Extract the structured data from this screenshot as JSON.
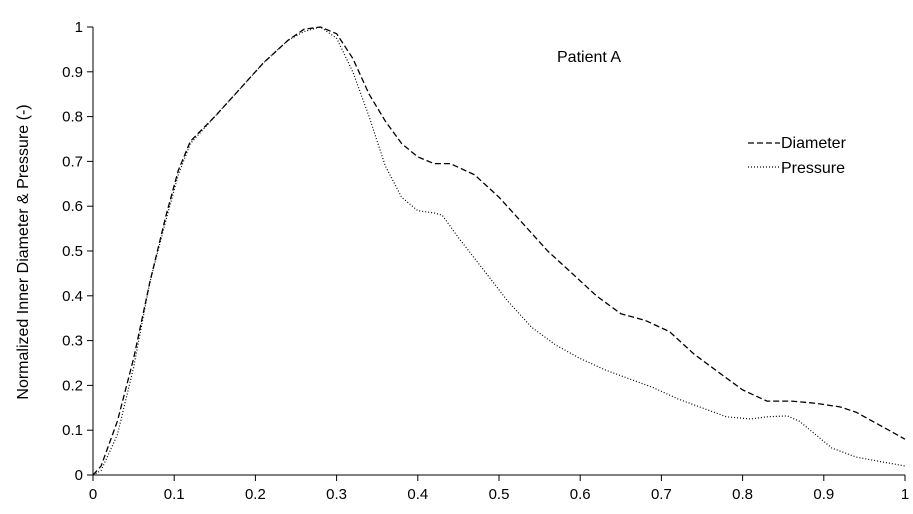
{
  "chart_data": {
    "type": "line",
    "annotation": "Patient A",
    "xlabel": "",
    "ylabel": "Normalized Inner Diameter & Pressure (-)",
    "xlim": [
      0,
      1
    ],
    "ylim": [
      0,
      1
    ],
    "xticks": [
      "0",
      "0.1",
      "0.2",
      "0.3",
      "0.4",
      "0.5",
      "0.6",
      "0.7",
      "0.8",
      "0.9",
      "1"
    ],
    "yticks": [
      "0",
      "0.1",
      "0.2",
      "0.3",
      "0.4",
      "0.5",
      "0.6",
      "0.7",
      "0.8",
      "0.9",
      "1"
    ],
    "grid": false,
    "legend_position": "right",
    "series": [
      {
        "name": "Diameter",
        "style": "dashed",
        "color": "#000000",
        "points": [
          [
            0,
            0
          ],
          [
            0.01,
            0.02
          ],
          [
            0.03,
            0.12
          ],
          [
            0.05,
            0.26
          ],
          [
            0.07,
            0.43
          ],
          [
            0.09,
            0.58
          ],
          [
            0.105,
            0.68
          ],
          [
            0.12,
            0.745
          ],
          [
            0.15,
            0.8
          ],
          [
            0.18,
            0.86
          ],
          [
            0.21,
            0.92
          ],
          [
            0.24,
            0.97
          ],
          [
            0.26,
            0.995
          ],
          [
            0.28,
            1.0
          ],
          [
            0.3,
            0.985
          ],
          [
            0.32,
            0.93
          ],
          [
            0.34,
            0.85
          ],
          [
            0.36,
            0.79
          ],
          [
            0.38,
            0.74
          ],
          [
            0.4,
            0.71
          ],
          [
            0.42,
            0.695
          ],
          [
            0.44,
            0.695
          ],
          [
            0.47,
            0.67
          ],
          [
            0.5,
            0.62
          ],
          [
            0.53,
            0.56
          ],
          [
            0.56,
            0.5
          ],
          [
            0.59,
            0.45
          ],
          [
            0.62,
            0.4
          ],
          [
            0.65,
            0.36
          ],
          [
            0.68,
            0.345
          ],
          [
            0.71,
            0.32
          ],
          [
            0.74,
            0.27
          ],
          [
            0.77,
            0.23
          ],
          [
            0.8,
            0.19
          ],
          [
            0.83,
            0.165
          ],
          [
            0.86,
            0.165
          ],
          [
            0.89,
            0.16
          ],
          [
            0.92,
            0.152
          ],
          [
            0.94,
            0.14
          ],
          [
            0.97,
            0.11
          ],
          [
            1.0,
            0.08
          ]
        ]
      },
      {
        "name": "Pressure",
        "style": "dotted",
        "color": "#000000",
        "points": [
          [
            0,
            0
          ],
          [
            0.01,
            0.01
          ],
          [
            0.03,
            0.09
          ],
          [
            0.05,
            0.24
          ],
          [
            0.07,
            0.43
          ],
          [
            0.09,
            0.57
          ],
          [
            0.105,
            0.67
          ],
          [
            0.12,
            0.74
          ],
          [
            0.15,
            0.8
          ],
          [
            0.18,
            0.86
          ],
          [
            0.21,
            0.92
          ],
          [
            0.24,
            0.97
          ],
          [
            0.26,
            0.99
          ],
          [
            0.28,
            1.0
          ],
          [
            0.3,
            0.975
          ],
          [
            0.32,
            0.9
          ],
          [
            0.34,
            0.8
          ],
          [
            0.36,
            0.69
          ],
          [
            0.38,
            0.62
          ],
          [
            0.4,
            0.59
          ],
          [
            0.42,
            0.585
          ],
          [
            0.43,
            0.58
          ],
          [
            0.45,
            0.53
          ],
          [
            0.48,
            0.46
          ],
          [
            0.51,
            0.39
          ],
          [
            0.54,
            0.33
          ],
          [
            0.57,
            0.29
          ],
          [
            0.6,
            0.26
          ],
          [
            0.63,
            0.235
          ],
          [
            0.66,
            0.215
          ],
          [
            0.69,
            0.195
          ],
          [
            0.72,
            0.17
          ],
          [
            0.75,
            0.15
          ],
          [
            0.78,
            0.13
          ],
          [
            0.81,
            0.125
          ],
          [
            0.83,
            0.13
          ],
          [
            0.855,
            0.132
          ],
          [
            0.87,
            0.12
          ],
          [
            0.89,
            0.09
          ],
          [
            0.91,
            0.06
          ],
          [
            0.94,
            0.04
          ],
          [
            0.97,
            0.03
          ],
          [
            1.0,
            0.02
          ]
        ]
      }
    ]
  }
}
